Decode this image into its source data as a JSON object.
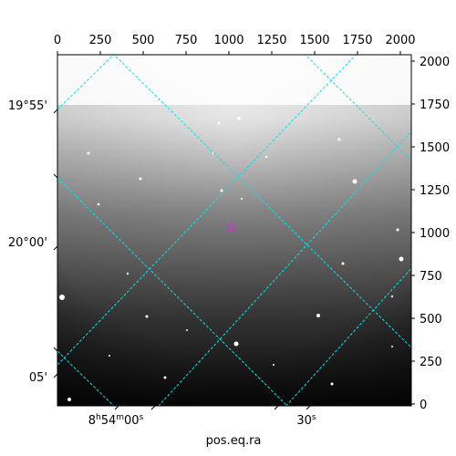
{
  "figure": {
    "xlabel": "pos.eq.ra",
    "top_axis": {
      "ticks": [
        {
          "value": 0,
          "label": "0"
        },
        {
          "value": 250,
          "label": "250"
        },
        {
          "value": 500,
          "label": "500"
        },
        {
          "value": 750,
          "label": "750"
        },
        {
          "value": 1000,
          "label": "1000"
        },
        {
          "value": 1250,
          "label": "1250"
        },
        {
          "value": 1500,
          "label": "1500"
        },
        {
          "value": 1750,
          "label": "1750"
        },
        {
          "value": 2000,
          "label": "2000"
        }
      ],
      "range": [
        0,
        2048
      ]
    },
    "right_axis": {
      "ticks": [
        {
          "value": 0,
          "label": "0"
        },
        {
          "value": 250,
          "label": "250"
        },
        {
          "value": 500,
          "label": "500"
        },
        {
          "value": 750,
          "label": "750"
        },
        {
          "value": 1000,
          "label": "1000"
        },
        {
          "value": 1250,
          "label": "1250"
        },
        {
          "value": 1500,
          "label": "1500"
        },
        {
          "value": 1750,
          "label": "1750"
        },
        {
          "value": 2000,
          "label": "2000"
        }
      ],
      "range": [
        0,
        2048
      ]
    },
    "dec_labels": [
      {
        "label": "19°55'",
        "dec_pixel": 1750
      },
      {
        "label": "20°00'",
        "dec_pixel": 1000
      },
      {
        "label": "05'",
        "dec_pixel": 200
      }
    ],
    "ra_labels": [
      {
        "label": "8h54m00s",
        "ra_pixel": 350
      },
      {
        "label": "30s",
        "ra_pixel": 1450
      }
    ],
    "grid_color": "#00e5ee",
    "marker_color": "#cc33cc",
    "marker_position": {
      "x": 1030,
      "y": 1050
    },
    "image_background": "grayscale sky image, brighter toward top"
  }
}
